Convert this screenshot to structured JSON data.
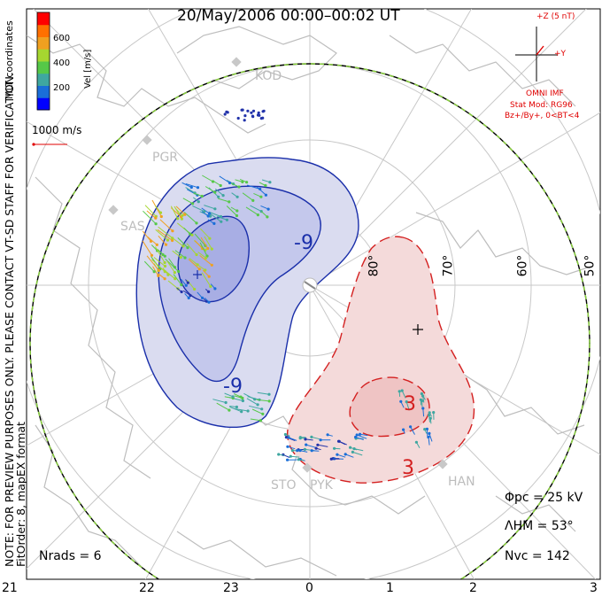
{
  "title": "20/May/2006 00:00–00:02  UT",
  "coordinates_label": "MLT coordinates",
  "side_note": [
    "NOTE: FOR PREVIEW PURPOSES ONLY. PLEASE CONTACT VT-SD STAFF FOR VERIFICATION.",
    "FitOrder: 8, mapEX format"
  ],
  "colorbar": {
    "unit_label": "Vel [m/s]",
    "ticks": [
      "600",
      "400",
      "200"
    ],
    "colors": [
      "#0000ff",
      "#1a6ed8",
      "#3fa7a0",
      "#56c848",
      "#a6d630",
      "#f0a020",
      "#ff7000",
      "#ff0000"
    ]
  },
  "vector_scale": "1000 m/s",
  "imf": {
    "scale": "+Z (5 nT)",
    "y_label": "+Y",
    "source": "OMNI IMF",
    "model": "Stat Mod: RG96",
    "condition": "Bz+/By+, 0<BT<4"
  },
  "sites": [
    "KOD",
    "PGR",
    "SAS",
    "STO",
    "PYK",
    "HAN"
  ],
  "lat_labels": [
    "80°",
    "70°",
    "60°",
    "50°"
  ],
  "mlt_labels": [
    "21",
    "22",
    "23",
    "0",
    "1",
    "2",
    "3"
  ],
  "contours": {
    "dusk_label": "-9",
    "dawn_label": "3",
    "dusk_inner_label": "-9",
    "dawn_inner_label": "3"
  },
  "stats": {
    "phi_pc": "Φpc = 25 kV",
    "lambda_hm": "ΛHM = 53°",
    "n_vc": "Nvc = 142",
    "n_rads": "Nrads = 6"
  },
  "colors": {
    "dusk_cell": "#2233aa",
    "dawn_cell": "#d42020",
    "heppner_boundary": "#8ad43c"
  }
}
